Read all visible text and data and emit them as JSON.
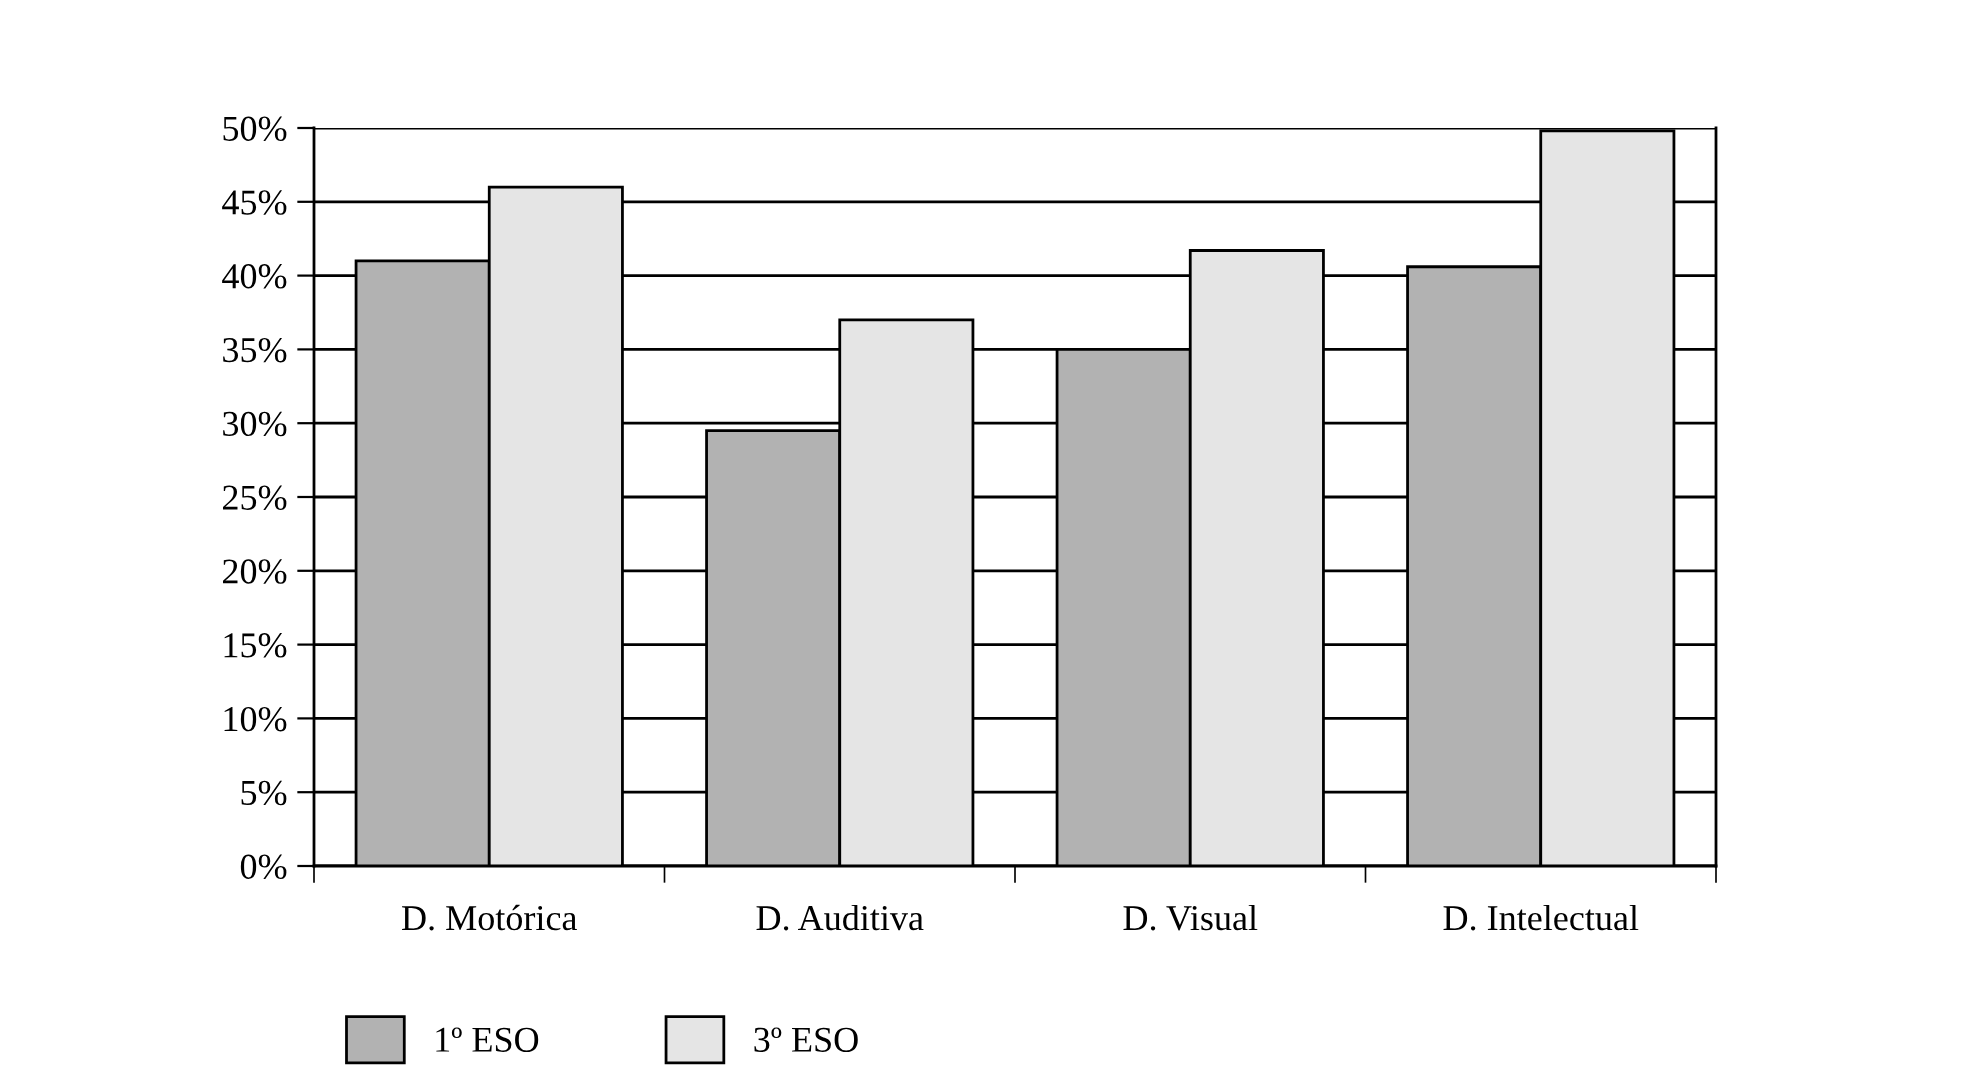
{
  "chart_data": {
    "type": "bar",
    "categories": [
      "D. Motórica",
      "D. Auditiva",
      "D. Visual",
      "D. Intelectual"
    ],
    "series": [
      {
        "name": "1º ESO",
        "color": "#b2b2b2",
        "values": [
          41,
          29.5,
          35,
          40.6
        ]
      },
      {
        "name": "3º ESO",
        "color": "#e5e5e5",
        "values": [
          46,
          37,
          41.7,
          49.8
        ]
      }
    ],
    "ylim": [
      0,
      50
    ],
    "yticks": [
      {
        "value": 0,
        "label": "0%"
      },
      {
        "value": 5,
        "label": "5%"
      },
      {
        "value": 10,
        "label": "10%"
      },
      {
        "value": 15,
        "label": "15%"
      },
      {
        "value": 20,
        "label": "20%"
      },
      {
        "value": 25,
        "label": "25%"
      },
      {
        "value": 30,
        "label": "30%"
      },
      {
        "value": 35,
        "label": "35%"
      },
      {
        "value": 40,
        "label": "40%"
      },
      {
        "value": 45,
        "label": "45%"
      },
      {
        "value": 50,
        "label": "50%"
      }
    ],
    "grid": "y",
    "legend": "bottom left"
  }
}
